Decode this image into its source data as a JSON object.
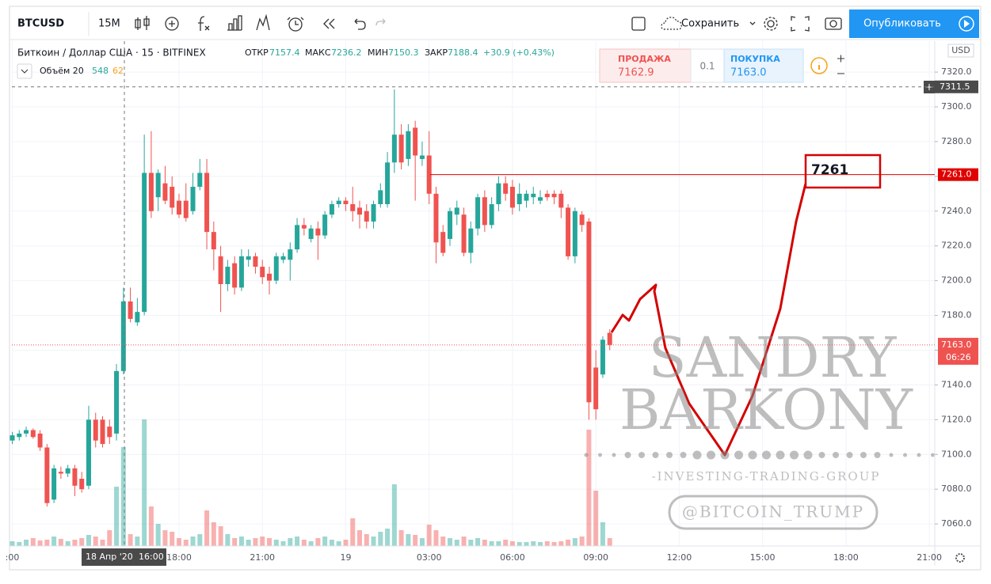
{
  "toolbar": {
    "symbol": "BTCUSD",
    "interval": "15M",
    "save": "Сохранить",
    "publish": "Опубликовать"
  },
  "legend": {
    "name": "Биткоин / Доллар США · 15 · BITFINEX",
    "open_label": "ОТКР",
    "open": "7157.4",
    "high_label": "МАКС",
    "high": "7236.2",
    "low_label": "МИН",
    "low": "7150.3",
    "close_label": "ЗАКР",
    "close": "7188.4",
    "change": "+30.9 (+0.43%)",
    "volume_label": "Объём 20",
    "volume_a": "548",
    "volume_b": "62"
  },
  "trade_panel": {
    "sell_label": "ПРОДАЖА",
    "sell": "7162.9",
    "qty": "0.1",
    "buy_label": "ПОКУПКА",
    "buy": "7163.0"
  },
  "watermark": {
    "line1": "SANDRY",
    "line2": "BARKONY",
    "line3": "-INVESTING-TRADING-GROUP",
    "handle": "@BITCOIN_TRUMP"
  },
  "annotation": "7261",
  "chart_data": {
    "type": "candlestick",
    "currency": "USD",
    "categories": [
      ":00",
      null,
      null,
      null,
      null,
      null,
      null,
      null,
      null,
      null,
      null,
      null,
      null,
      null,
      null,
      null,
      null,
      null,
      null,
      null,
      null,
      null,
      null,
      null,
      "18:00",
      null,
      null,
      null,
      null,
      null,
      null,
      null,
      null,
      null,
      null,
      null,
      "21:00",
      null,
      null,
      null,
      null,
      null,
      null,
      null,
      null,
      null,
      null,
      null,
      "19",
      null,
      null,
      null,
      null,
      null,
      null,
      null,
      null,
      null,
      null,
      null,
      "03:00",
      null,
      null,
      null,
      null,
      null,
      null,
      null,
      null,
      null,
      null,
      null,
      "06:00",
      null,
      null,
      null,
      null,
      null,
      null,
      null,
      null,
      null,
      null,
      null,
      "09:00",
      null,
      null
    ],
    "future_time_labels": [
      "12:00",
      "15:00",
      "18:00",
      "21:00"
    ],
    "open": [
      7108,
      7110,
      7112,
      7114,
      7112,
      7104,
      7074,
      7090,
      7089,
      7092,
      7086,
      7082,
      7120,
      7120,
      7116,
      7112,
      7148,
      7188,
      7176,
      7182,
      7262,
      7248,
      7256,
      7254,
      7246,
      7246,
      7240,
      7254,
      7262,
      7228,
      7214,
      7198,
      7210,
      7196,
      7212,
      7214,
      7208,
      7204,
      7200,
      7212,
      7212,
      7218,
      7232,
      7224,
      7230,
      7226,
      7238,
      7244,
      7246,
      7244,
      7242,
      7240,
      7234,
      7244,
      7244,
      7268,
      7284,
      7270,
      7288,
      7270,
      7272,
      7250,
      7228,
      7224,
      7238,
      7238,
      7216,
      7230,
      7248,
      7232,
      7244,
      7256,
      7254,
      7244,
      7246,
      7248,
      7246,
      7250,
      7250,
      7250,
      7242,
      7214,
      7238,
      7234,
      7150,
      7146,
      7170
    ],
    "high": [
      7113,
      7114,
      7116,
      7115,
      7114,
      7106,
      7094,
      7093,
      7094,
      7094,
      7090,
      7128,
      7124,
      7122,
      7120,
      7152,
      7196,
      7196,
      7190,
      7284,
      7286,
      7264,
      7266,
      7260,
      7250,
      7256,
      7262,
      7270,
      7270,
      7234,
      7220,
      7212,
      7214,
      7218,
      7218,
      7216,
      7212,
      7208,
      7216,
      7216,
      7222,
      7236,
      7236,
      7232,
      7234,
      7240,
      7246,
      7248,
      7248,
      7254,
      7246,
      7244,
      7246,
      7256,
      7274,
      7310,
      7290,
      7290,
      7292,
      7280,
      7286,
      7254,
      7232,
      7242,
      7246,
      7242,
      7234,
      7250,
      7252,
      7248,
      7260,
      7260,
      7258,
      7256,
      7252,
      7254,
      7252,
      7252,
      7252,
      7252,
      7244,
      7242,
      7240,
      7236,
      7160,
      7168,
      7172
    ],
    "low": [
      7106,
      7108,
      7110,
      7109,
      7102,
      7070,
      7072,
      7086,
      7087,
      7076,
      7078,
      7080,
      7104,
      7104,
      7106,
      7108,
      7146,
      7176,
      7174,
      7180,
      7236,
      7240,
      7244,
      7238,
      7236,
      7234,
      7238,
      7252,
      7218,
      7206,
      7182,
      7194,
      7192,
      7194,
      7208,
      7204,
      7198,
      7192,
      7198,
      7210,
      7200,
      7216,
      7226,
      7222,
      7212,
      7224,
      7236,
      7242,
      7240,
      7234,
      7230,
      7230,
      7230,
      7242,
      7242,
      7262,
      7264,
      7266,
      7246,
      7266,
      7244,
      7210,
      7214,
      7220,
      7232,
      7214,
      7210,
      7226,
      7228,
      7230,
      7240,
      7246,
      7238,
      7240,
      7242,
      7244,
      7244,
      7246,
      7244,
      7236,
      7212,
      7210,
      7228,
      7120,
      7120,
      7144,
      7160
    ],
    "close": [
      7111,
      7112,
      7114,
      7110,
      7104,
      7072,
      7092,
      7089,
      7092,
      7082,
      7080,
      7120,
      7108,
      7106,
      7110,
      7148,
      7188,
      7178,
      7182,
      7262,
      7240,
      7262,
      7246,
      7242,
      7238,
      7236,
      7254,
      7262,
      7228,
      7218,
      7198,
      7208,
      7196,
      7214,
      7214,
      7208,
      7202,
      7200,
      7214,
      7214,
      7218,
      7232,
      7230,
      7230,
      7226,
      7238,
      7244,
      7246,
      7244,
      7240,
      7238,
      7234,
      7244,
      7252,
      7268,
      7284,
      7268,
      7286,
      7272,
      7272,
      7250,
      7222,
      7216,
      7240,
      7242,
      7216,
      7230,
      7248,
      7232,
      7244,
      7256,
      7250,
      7242,
      7250,
      7250,
      7250,
      7248,
      7248,
      7248,
      7242,
      7214,
      7240,
      7232,
      7130,
      7126,
      7166,
      7163
    ],
    "volume": [
      6,
      5,
      8,
      10,
      7,
      8,
      12,
      9,
      6,
      8,
      10,
      14,
      12,
      8,
      20,
      75,
      125,
      15,
      12,
      160,
      50,
      28,
      20,
      18,
      10,
      8,
      12,
      15,
      45,
      30,
      25,
      15,
      10,
      12,
      8,
      10,
      12,
      10,
      8,
      6,
      10,
      12,
      8,
      6,
      10,
      12,
      8,
      6,
      8,
      35,
      20,
      15,
      12,
      18,
      22,
      78,
      20,
      15,
      14,
      10,
      27,
      20,
      12,
      10,
      8,
      12,
      8,
      10,
      8,
      6,
      6,
      8,
      6,
      5,
      5,
      6,
      5,
      6,
      5,
      6,
      8,
      10,
      12,
      147,
      70,
      30,
      10
    ],
    "volume_lim": [
      0,
      200
    ],
    "up_color": "#26a69a",
    "down_color": "#ef5350",
    "ylim": [
      7047.3,
      7337.8
    ],
    "yticks": [
      {
        "value": 7060,
        "label": "7060.0"
      },
      {
        "value": 7080,
        "label": "7080.0"
      },
      {
        "value": 7100,
        "label": "7100.0"
      },
      {
        "value": 7120,
        "label": "7120.0"
      },
      {
        "value": 7140,
        "label": "7140.0"
      },
      {
        "value": 7160,
        "label": "7160.0"
      },
      {
        "value": 7180,
        "label": "7180.0"
      },
      {
        "value": 7200,
        "label": "7200.0"
      },
      {
        "value": 7220,
        "label": "7220.0"
      },
      {
        "value": 7240,
        "label": "7240.0"
      },
      {
        "value": 7260,
        "label": "7260.0"
      },
      {
        "value": 7280,
        "label": "7280.0"
      },
      {
        "value": 7300,
        "label": "7300.0"
      },
      {
        "value": 7320,
        "label": "7320.0"
      }
    ],
    "grid": true,
    "level_line": {
      "value": 7261.0,
      "label": "7261.0",
      "color": "#e00000"
    },
    "last_price": {
      "value": 7163.0,
      "label": "7163.0",
      "countdown": "06:26",
      "color": "#ef5350"
    },
    "crosshair": {
      "value": 7311.5,
      "label": "7311.5",
      "date": "18 Апр '20",
      "time": "16:00"
    }
  }
}
